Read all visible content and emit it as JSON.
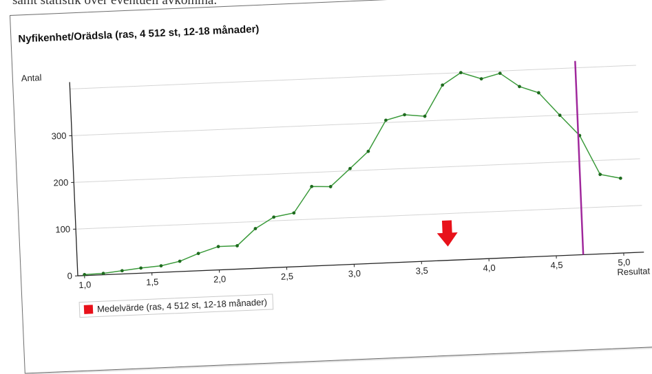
{
  "page": {
    "top_text": "samt statistik över eventuell avkomma."
  },
  "chart_data": {
    "type": "line",
    "title": "Nyfikenhet/Orädsla (ras, 4 512 st, 12-18 månader)",
    "ylabel": "Antal",
    "xlabel": "Resultat",
    "xlim": [
      0.95,
      5.15
    ],
    "ylim": [
      0,
      400
    ],
    "x_ticks": [
      1.0,
      1.5,
      2.0,
      2.5,
      3.0,
      3.5,
      4.0,
      4.5,
      5.0
    ],
    "x_tick_labels": [
      "1,0",
      "1,5",
      "2,0",
      "2,5",
      "3,0",
      "3,5",
      "4,0",
      "4,5",
      "5,0"
    ],
    "y_ticks": [
      0,
      100,
      200,
      300
    ],
    "y_tick_labels": [
      "0",
      "100",
      "200",
      "300"
    ],
    "grid": "horizontal",
    "series": [
      {
        "color": "#3a9a3a",
        "x": [
          1.0,
          1.14,
          1.28,
          1.42,
          1.57,
          1.71,
          1.85,
          2.0,
          2.14,
          2.28,
          2.42,
          2.57,
          2.71,
          2.85,
          3.0,
          3.14,
          3.28,
          3.42,
          3.57,
          3.71,
          3.85,
          4.0,
          4.14,
          4.28,
          4.42,
          4.57,
          4.71,
          4.85,
          5.0
        ],
        "y": [
          2,
          3,
          7,
          11,
          14,
          22,
          37,
          50,
          50,
          85,
          108,
          115,
          170,
          168,
          205,
          240,
          305,
          315,
          310,
          375,
          400,
          385,
          395,
          365,
          350,
          300,
          255,
          170,
          160
        ]
      }
    ],
    "mean_marker": {
      "x": 3.7,
      "color": "#e8111a"
    },
    "dog_marker": {
      "x": 4.7,
      "color": "#a0289c"
    },
    "legend": {
      "entries": [
        "Medelvärde (ras, 4 512 st, 12-18 månader)"
      ],
      "placement": "bottom-left"
    }
  }
}
